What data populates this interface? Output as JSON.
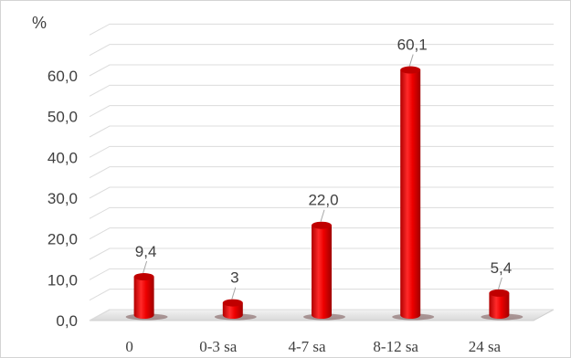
{
  "chart_data": {
    "type": "bar",
    "unit_label": "%",
    "categories": [
      "0",
      "0-3 sa",
      "4-7 sa",
      "8-12 sa",
      "24 sa"
    ],
    "values": [
      9.4,
      3,
      22.0,
      60.1,
      5.4
    ],
    "value_labels": [
      "9,4",
      "3",
      "22,0",
      "60,1",
      "5,4"
    ],
    "ylim": [
      0,
      60
    ],
    "yticks": [
      "0,0",
      "10,0",
      "20,0",
      "30,0",
      "40,0",
      "50,0",
      "60,0"
    ],
    "ytick_values": [
      0,
      10,
      20,
      30,
      40,
      50,
      60
    ],
    "grid": true,
    "legend": "none",
    "style": "3d-cylinder",
    "bar_color": "#ff0000",
    "bar_dark_color": "#c00000"
  }
}
